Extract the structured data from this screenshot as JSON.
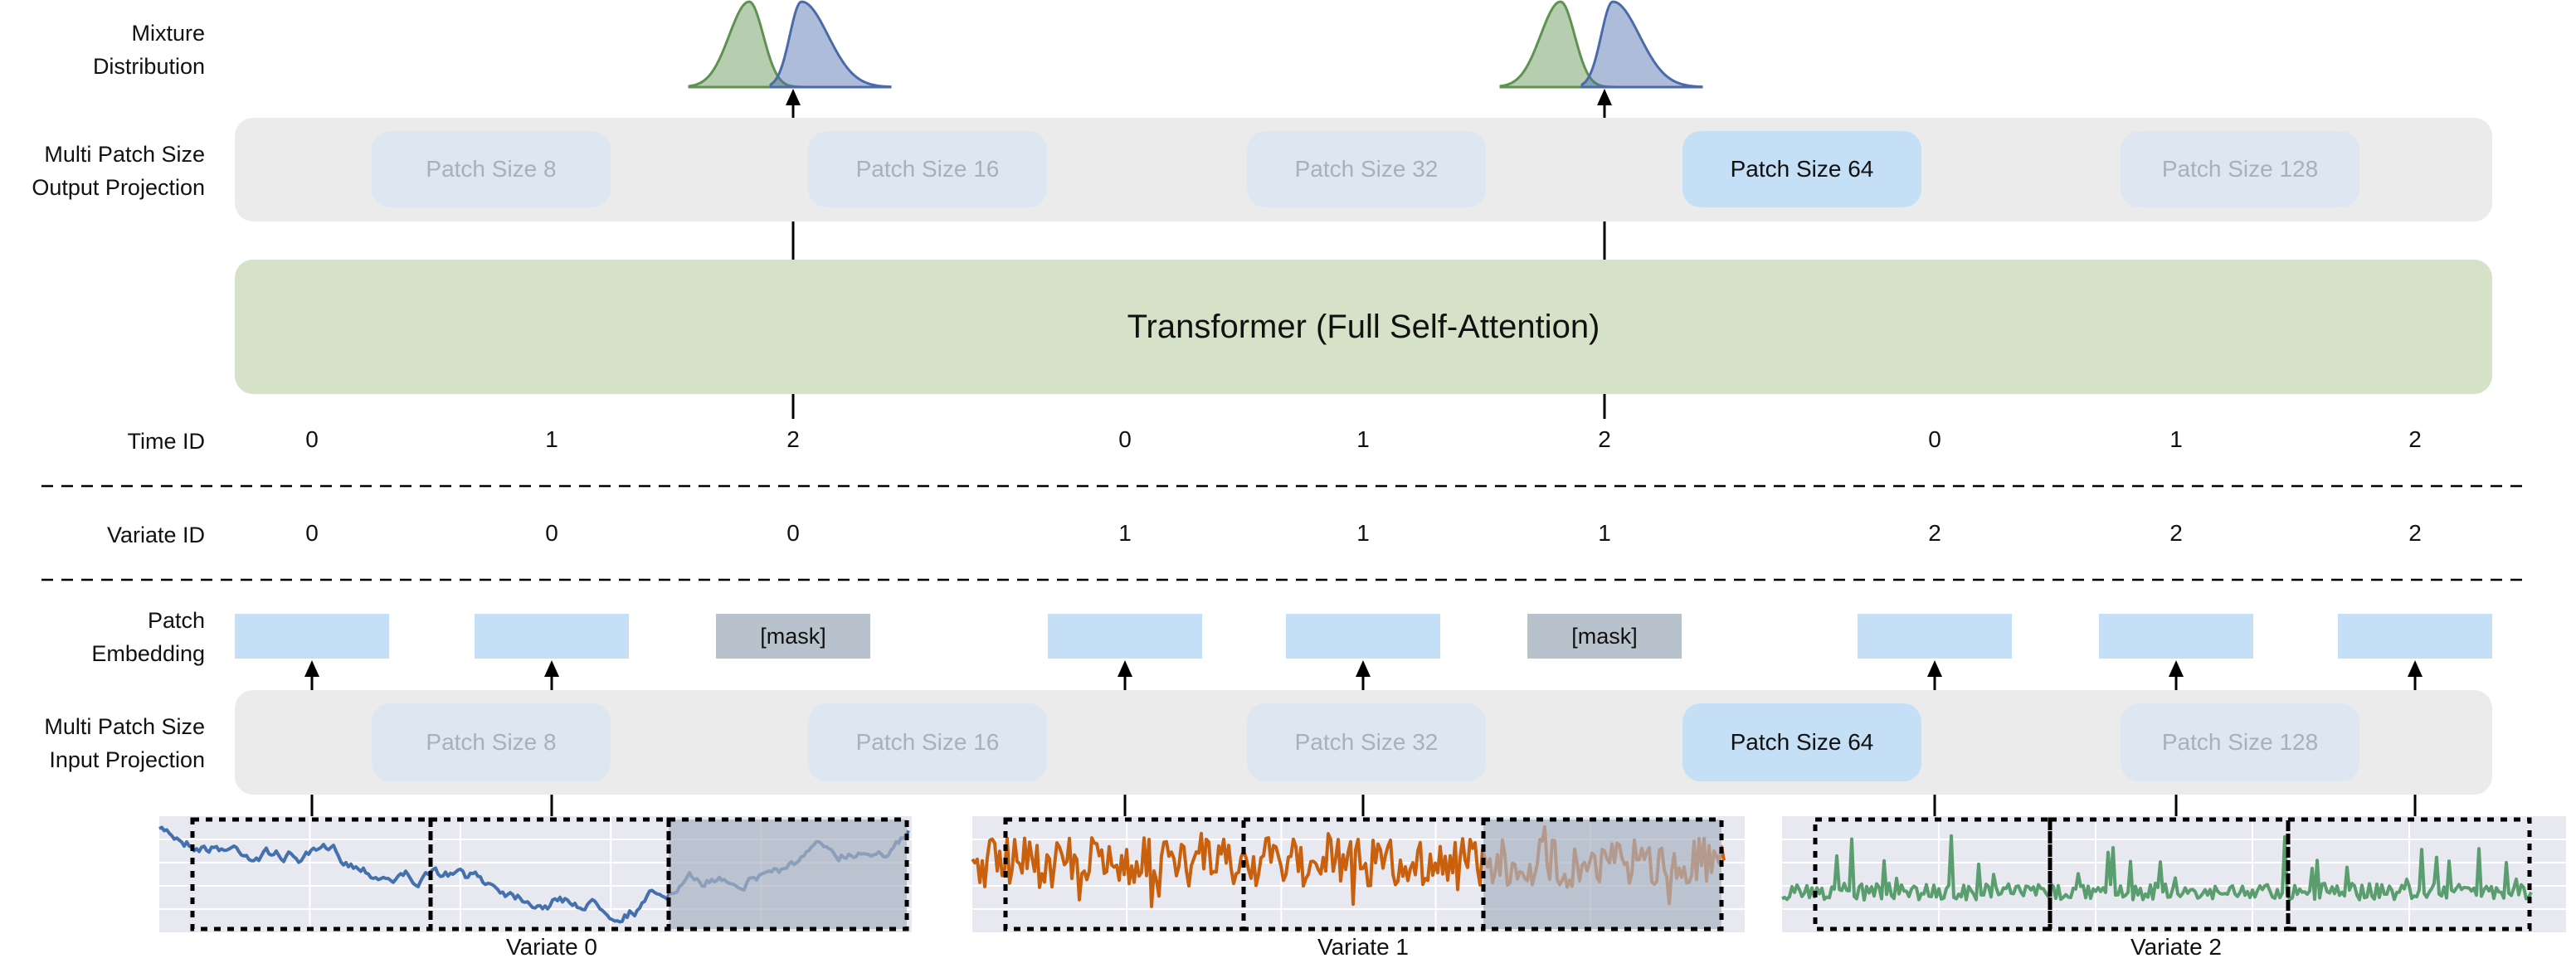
{
  "labels": {
    "mixture": [
      "Mixture",
      "Distribution"
    ],
    "output_projection": [
      "Multi Patch Size",
      "Output Projection"
    ],
    "time_id": "Time ID",
    "variate_id": "Variate ID",
    "patch_embedding": [
      "Patch",
      "Embedding"
    ],
    "input_projection": [
      "Multi Patch Size",
      "Input Projection"
    ]
  },
  "patch_sizes": [
    "Patch Size 8",
    "Patch Size 16",
    "Patch Size 32",
    "Patch Size 64",
    "Patch Size 128"
  ],
  "active_patch_size_index": 3,
  "transformer": "Transformer (Full Self-Attention)",
  "time_ids": [
    "0",
    "1",
    "2",
    "0",
    "1",
    "2",
    "0",
    "1",
    "2"
  ],
  "variate_ids": [
    "0",
    "0",
    "0",
    "1",
    "1",
    "1",
    "2",
    "2",
    "2"
  ],
  "embeddings": [
    {
      "masked": false,
      "label": ""
    },
    {
      "masked": false,
      "label": ""
    },
    {
      "masked": true,
      "label": "[mask]"
    },
    {
      "masked": false,
      "label": ""
    },
    {
      "masked": false,
      "label": ""
    },
    {
      "masked": true,
      "label": "[mask]"
    },
    {
      "masked": false,
      "label": ""
    },
    {
      "masked": false,
      "label": ""
    },
    {
      "masked": false,
      "label": ""
    }
  ],
  "variates": [
    {
      "label": "Variate 0",
      "color": "#4470ad",
      "masked_patch": 2
    },
    {
      "label": "Variate 1",
      "color": "#c8600e",
      "masked_patch": 2
    },
    {
      "label": "Variate 2",
      "color": "#5a9e6f",
      "masked_patch": null
    }
  ],
  "mixture_colors": {
    "component_a": "#5f9150",
    "component_b": "#4a6aaa"
  },
  "colors": {
    "projection_bg": "#ebebeb",
    "patch_inactive": "#dee7f1",
    "patch_active": "#c4dff6",
    "transformer": "#d5e2c8",
    "embedding": "#c4dff6",
    "mask": "#b8c2cd",
    "plot_bg": "#e8e8f0"
  }
}
